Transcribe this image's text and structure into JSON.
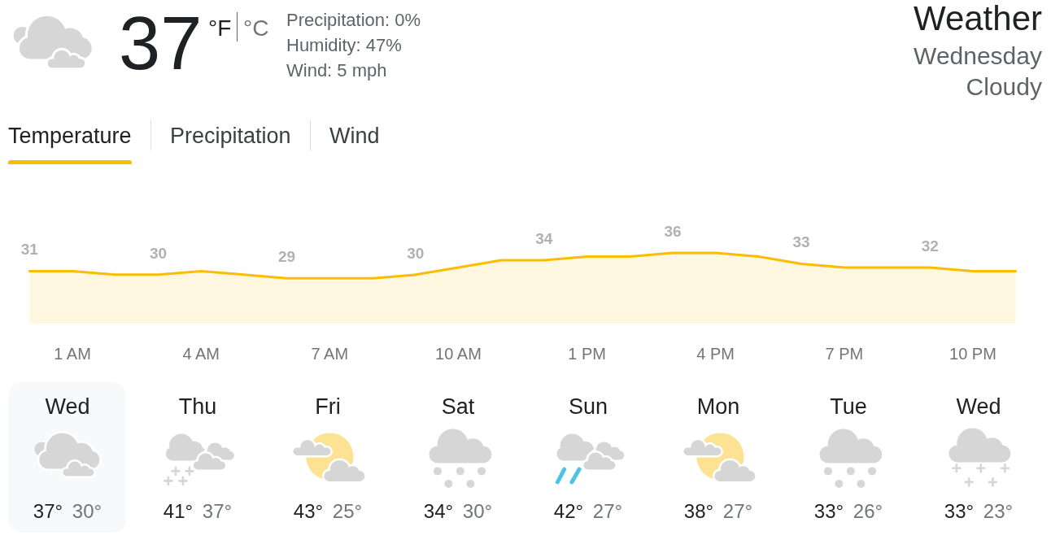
{
  "chart_data": [
    {
      "type": "other",
      "title": "Weather",
      "subtitle": "Wednesday",
      "annotations": [
        "Cloudy",
        "37",
        "°F",
        "°C",
        "Precipitation: 0%",
        "Humidity: 47%",
        "Wind: 5 mph",
        "Temperature",
        "Precipitation",
        "Wind"
      ]
    },
    {
      "type": "area",
      "categories": [
        null,
        "1 AM",
        null,
        null,
        "4 AM",
        null,
        null,
        "7 AM",
        null,
        null,
        "10 AM",
        null,
        null,
        "1 PM",
        null,
        null,
        "4 PM",
        null,
        null,
        "7 PM",
        null,
        null,
        "10 PM",
        null
      ],
      "values": [
        31,
        31,
        30,
        30,
        31,
        30,
        29,
        29,
        29,
        30,
        32,
        34,
        34,
        35,
        35,
        36,
        36,
        35,
        33,
        32,
        32,
        32,
        31,
        31
      ],
      "value_labels": [
        "31",
        null,
        null,
        "30",
        null,
        null,
        "29",
        null,
        null,
        "30",
        null,
        null,
        "34",
        null,
        null,
        "36",
        null,
        null,
        "33",
        null,
        null,
        "32",
        null,
        null
      ],
      "color": "#fbbc04",
      "grid": false,
      "marker": "none",
      "line_style": "solid",
      "tick_labels": "x"
    },
    {
      "type": "other",
      "categories": [
        "Wed",
        "Thu",
        "Fri",
        "Sat",
        "Sun",
        "Mon",
        "Tue",
        "Wed"
      ],
      "annotations": [
        "37°",
        "30°",
        "41°",
        "37°",
        "43°",
        "25°",
        "34°",
        "30°",
        "42°",
        "27°",
        "38°",
        "27°",
        "33°",
        "26°",
        "33°",
        "23°"
      ]
    }
  ]
}
